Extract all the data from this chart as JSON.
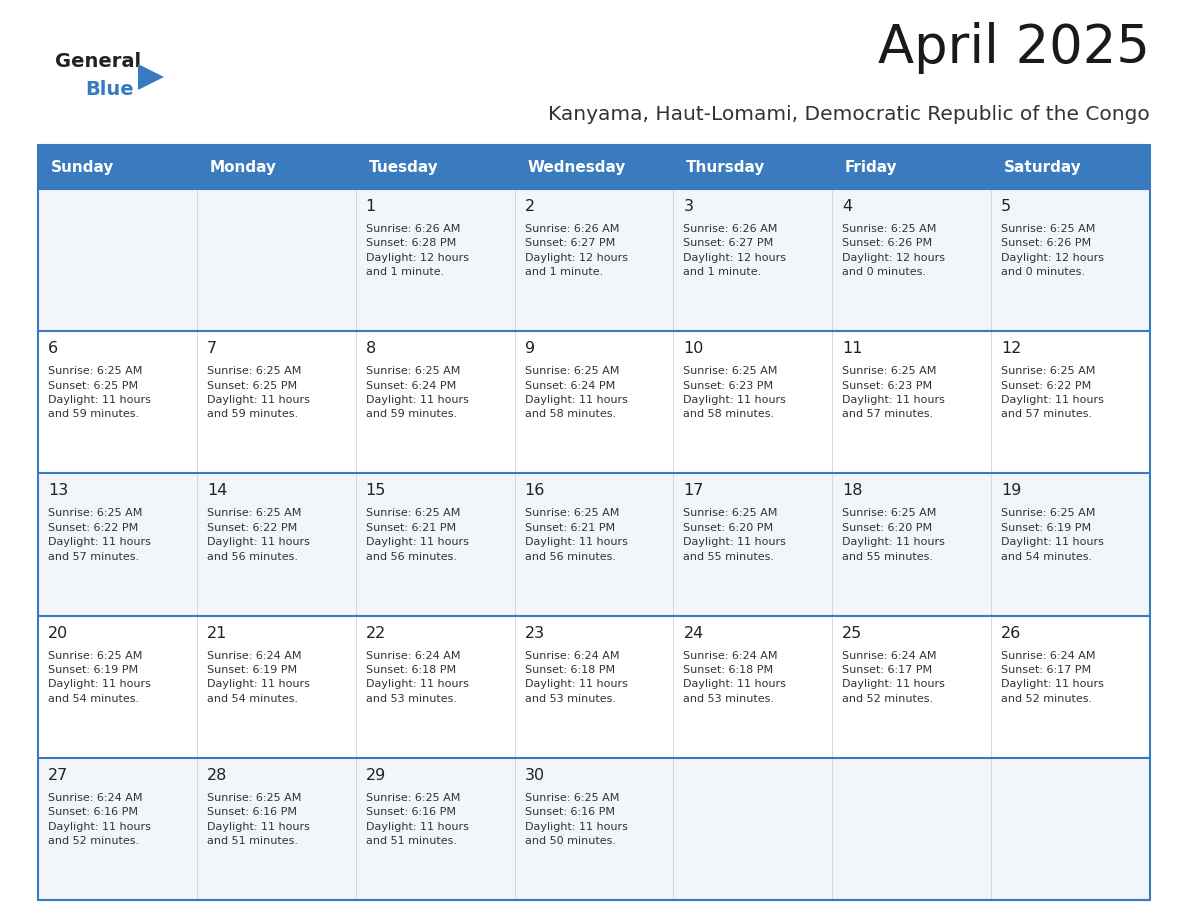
{
  "title": "April 2025",
  "subtitle": "Kanyama, Haut-Lomami, Democratic Republic of the Congo",
  "header_bg_color": "#3a7bbf",
  "header_text_color": "#ffffff",
  "cell_text_color": "#333333",
  "day_num_color": "#222222",
  "border_color": "#3a7bbf",
  "row_bg_odd": "#f2f6fb",
  "row_bg_even": "#ffffff",
  "logo_general_color": "#222222",
  "logo_blue_color": "#3a7bbf",
  "logo_triangle_color": "#3a7bbf",
  "days_of_week": [
    "Sunday",
    "Monday",
    "Tuesday",
    "Wednesday",
    "Thursday",
    "Friday",
    "Saturday"
  ],
  "weeks": [
    [
      {
        "day": "",
        "info": ""
      },
      {
        "day": "",
        "info": ""
      },
      {
        "day": "1",
        "info": "Sunrise: 6:26 AM\nSunset: 6:28 PM\nDaylight: 12 hours\nand 1 minute."
      },
      {
        "day": "2",
        "info": "Sunrise: 6:26 AM\nSunset: 6:27 PM\nDaylight: 12 hours\nand 1 minute."
      },
      {
        "day": "3",
        "info": "Sunrise: 6:26 AM\nSunset: 6:27 PM\nDaylight: 12 hours\nand 1 minute."
      },
      {
        "day": "4",
        "info": "Sunrise: 6:25 AM\nSunset: 6:26 PM\nDaylight: 12 hours\nand 0 minutes."
      },
      {
        "day": "5",
        "info": "Sunrise: 6:25 AM\nSunset: 6:26 PM\nDaylight: 12 hours\nand 0 minutes."
      }
    ],
    [
      {
        "day": "6",
        "info": "Sunrise: 6:25 AM\nSunset: 6:25 PM\nDaylight: 11 hours\nand 59 minutes."
      },
      {
        "day": "7",
        "info": "Sunrise: 6:25 AM\nSunset: 6:25 PM\nDaylight: 11 hours\nand 59 minutes."
      },
      {
        "day": "8",
        "info": "Sunrise: 6:25 AM\nSunset: 6:24 PM\nDaylight: 11 hours\nand 59 minutes."
      },
      {
        "day": "9",
        "info": "Sunrise: 6:25 AM\nSunset: 6:24 PM\nDaylight: 11 hours\nand 58 minutes."
      },
      {
        "day": "10",
        "info": "Sunrise: 6:25 AM\nSunset: 6:23 PM\nDaylight: 11 hours\nand 58 minutes."
      },
      {
        "day": "11",
        "info": "Sunrise: 6:25 AM\nSunset: 6:23 PM\nDaylight: 11 hours\nand 57 minutes."
      },
      {
        "day": "12",
        "info": "Sunrise: 6:25 AM\nSunset: 6:22 PM\nDaylight: 11 hours\nand 57 minutes."
      }
    ],
    [
      {
        "day": "13",
        "info": "Sunrise: 6:25 AM\nSunset: 6:22 PM\nDaylight: 11 hours\nand 57 minutes."
      },
      {
        "day": "14",
        "info": "Sunrise: 6:25 AM\nSunset: 6:22 PM\nDaylight: 11 hours\nand 56 minutes."
      },
      {
        "day": "15",
        "info": "Sunrise: 6:25 AM\nSunset: 6:21 PM\nDaylight: 11 hours\nand 56 minutes."
      },
      {
        "day": "16",
        "info": "Sunrise: 6:25 AM\nSunset: 6:21 PM\nDaylight: 11 hours\nand 56 minutes."
      },
      {
        "day": "17",
        "info": "Sunrise: 6:25 AM\nSunset: 6:20 PM\nDaylight: 11 hours\nand 55 minutes."
      },
      {
        "day": "18",
        "info": "Sunrise: 6:25 AM\nSunset: 6:20 PM\nDaylight: 11 hours\nand 55 minutes."
      },
      {
        "day": "19",
        "info": "Sunrise: 6:25 AM\nSunset: 6:19 PM\nDaylight: 11 hours\nand 54 minutes."
      }
    ],
    [
      {
        "day": "20",
        "info": "Sunrise: 6:25 AM\nSunset: 6:19 PM\nDaylight: 11 hours\nand 54 minutes."
      },
      {
        "day": "21",
        "info": "Sunrise: 6:24 AM\nSunset: 6:19 PM\nDaylight: 11 hours\nand 54 minutes."
      },
      {
        "day": "22",
        "info": "Sunrise: 6:24 AM\nSunset: 6:18 PM\nDaylight: 11 hours\nand 53 minutes."
      },
      {
        "day": "23",
        "info": "Sunrise: 6:24 AM\nSunset: 6:18 PM\nDaylight: 11 hours\nand 53 minutes."
      },
      {
        "day": "24",
        "info": "Sunrise: 6:24 AM\nSunset: 6:18 PM\nDaylight: 11 hours\nand 53 minutes."
      },
      {
        "day": "25",
        "info": "Sunrise: 6:24 AM\nSunset: 6:17 PM\nDaylight: 11 hours\nand 52 minutes."
      },
      {
        "day": "26",
        "info": "Sunrise: 6:24 AM\nSunset: 6:17 PM\nDaylight: 11 hours\nand 52 minutes."
      }
    ],
    [
      {
        "day": "27",
        "info": "Sunrise: 6:24 AM\nSunset: 6:16 PM\nDaylight: 11 hours\nand 52 minutes."
      },
      {
        "day": "28",
        "info": "Sunrise: 6:25 AM\nSunset: 6:16 PM\nDaylight: 11 hours\nand 51 minutes."
      },
      {
        "day": "29",
        "info": "Sunrise: 6:25 AM\nSunset: 6:16 PM\nDaylight: 11 hours\nand 51 minutes."
      },
      {
        "day": "30",
        "info": "Sunrise: 6:25 AM\nSunset: 6:16 PM\nDaylight: 11 hours\nand 50 minutes."
      },
      {
        "day": "",
        "info": ""
      },
      {
        "day": "",
        "info": ""
      },
      {
        "day": "",
        "info": ""
      }
    ]
  ]
}
